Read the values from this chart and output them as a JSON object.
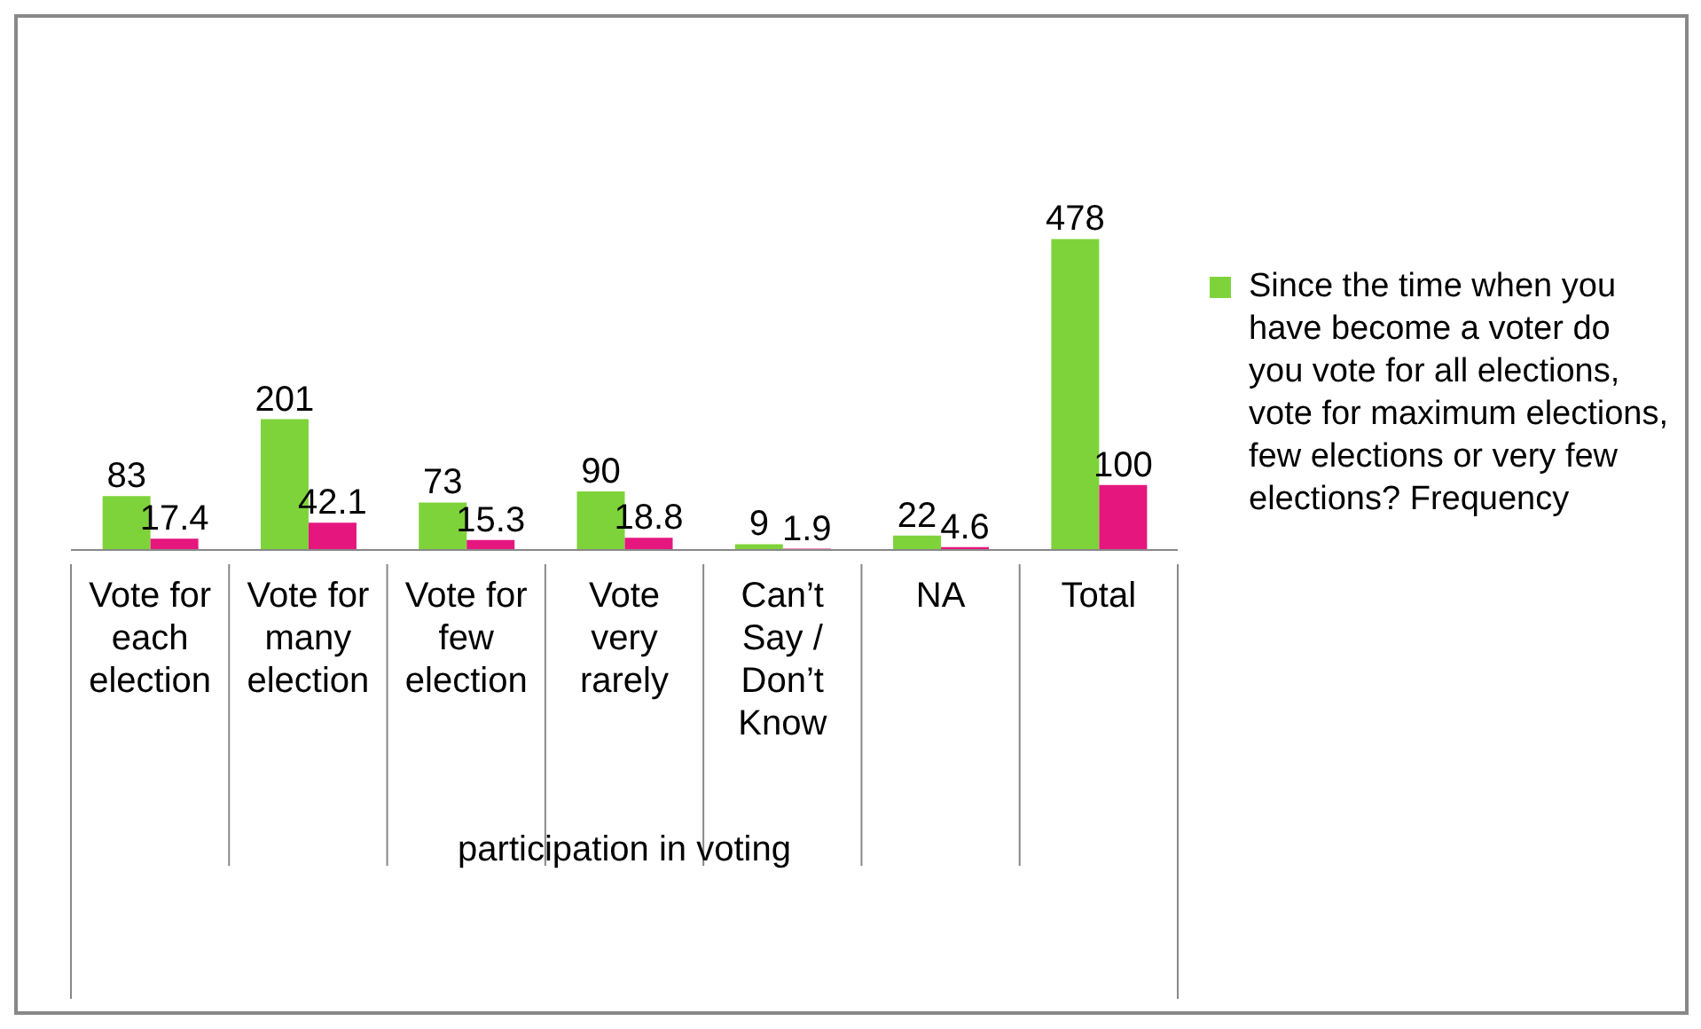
{
  "chart_data": {
    "type": "bar",
    "categories": [
      "Vote for each election",
      "Vote for many election",
      "Vote for few election",
      "Vote very rarely",
      "Can’t Say / Don’t Know",
      "NA",
      "Total"
    ],
    "series": [
      {
        "name": "Since the time when you have become a voter do you vote for all elections, vote for maximum elections, few elections or very few elections? Frequency",
        "color": "#7ed33a",
        "values": [
          83,
          201,
          73,
          90,
          9,
          22,
          478
        ]
      },
      {
        "color": "#e5167e",
        "values": [
          17.4,
          42.1,
          15.3,
          18.8,
          1.9,
          4.6,
          100
        ]
      }
    ],
    "xlabel": "participation in voting",
    "data_labels": true,
    "grid": false,
    "legend": "right"
  }
}
